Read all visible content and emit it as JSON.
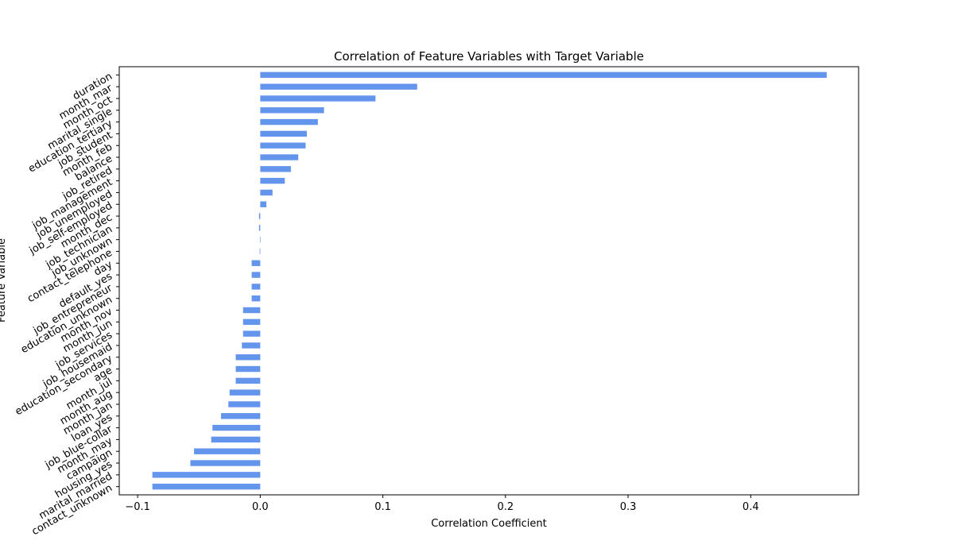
{
  "chart_data": {
    "type": "bar",
    "orientation": "horizontal",
    "title": "Correlation of Feature Variables with Target Variable",
    "xlabel": "Correlation Coefficient",
    "ylabel": "Feature Variable",
    "xlim": [
      -0.115,
      0.488
    ],
    "xticks": [
      -0.1,
      0.0,
      0.1,
      0.2,
      0.3,
      0.4
    ],
    "xtick_labels": [
      "−0.1",
      "0.0",
      "0.1",
      "0.2",
      "0.3",
      "0.4"
    ],
    "grid": false,
    "bar_color": "#6495ED",
    "categories": [
      "duration",
      "month_mar",
      "month_oct",
      "marital_single",
      "education_tertiary",
      "job_student",
      "month_feb",
      "balance",
      "job_retired",
      "job_management",
      "job_unemployed",
      "job_self-employed",
      "month_dec",
      "job_technician",
      "job_unknown",
      "contact_telephone",
      "day",
      "default_yes",
      "job_entrepreneur",
      "education_unknown",
      "month_nov",
      "month_jun",
      "job_services",
      "job_housemaid",
      "education_secondary",
      "age",
      "month_jul",
      "month_aug",
      "month_jan",
      "loan_yes",
      "job_blue-collar",
      "month_may",
      "campaign",
      "housing_yes",
      "marital_married",
      "contact_unknown"
    ],
    "values": [
      0.462,
      0.128,
      0.094,
      0.052,
      0.047,
      0.038,
      0.037,
      0.031,
      0.025,
      0.02,
      0.01,
      0.005,
      -0.001,
      -0.001,
      0.0,
      -0.0005,
      -0.007,
      -0.007,
      -0.007,
      -0.007,
      -0.014,
      -0.014,
      -0.014,
      -0.015,
      -0.02,
      -0.02,
      -0.02,
      -0.025,
      -0.026,
      -0.032,
      -0.039,
      -0.04,
      -0.054,
      -0.057,
      -0.088,
      -0.088
    ]
  }
}
